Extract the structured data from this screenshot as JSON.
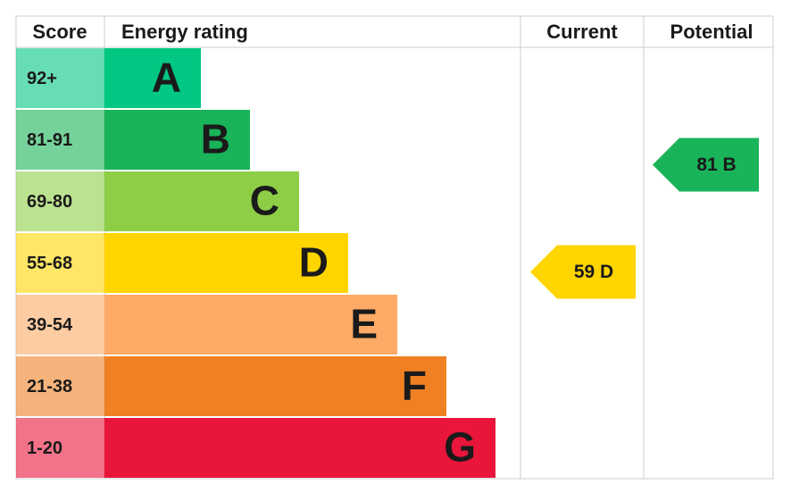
{
  "header": {
    "score": "Score",
    "energy_rating": "Energy rating",
    "current": "Current",
    "potential": "Potential"
  },
  "bands": [
    {
      "range": "92+",
      "letter": "A",
      "color": "#00c781"
    },
    {
      "range": "81-91",
      "letter": "B",
      "color": "#19b459"
    },
    {
      "range": "69-80",
      "letter": "C",
      "color": "#8dce46"
    },
    {
      "range": "55-68",
      "letter": "D",
      "color": "#ffd500"
    },
    {
      "range": "39-54",
      "letter": "E",
      "color": "#fcaa65"
    },
    {
      "range": "21-38",
      "letter": "F",
      "color": "#ef8023"
    },
    {
      "range": "1-20",
      "letter": "G",
      "color": "#e9153b"
    }
  ],
  "current": {
    "label": "59 D",
    "band": "D"
  },
  "potential": {
    "label": "81 B",
    "band": "B"
  }
}
